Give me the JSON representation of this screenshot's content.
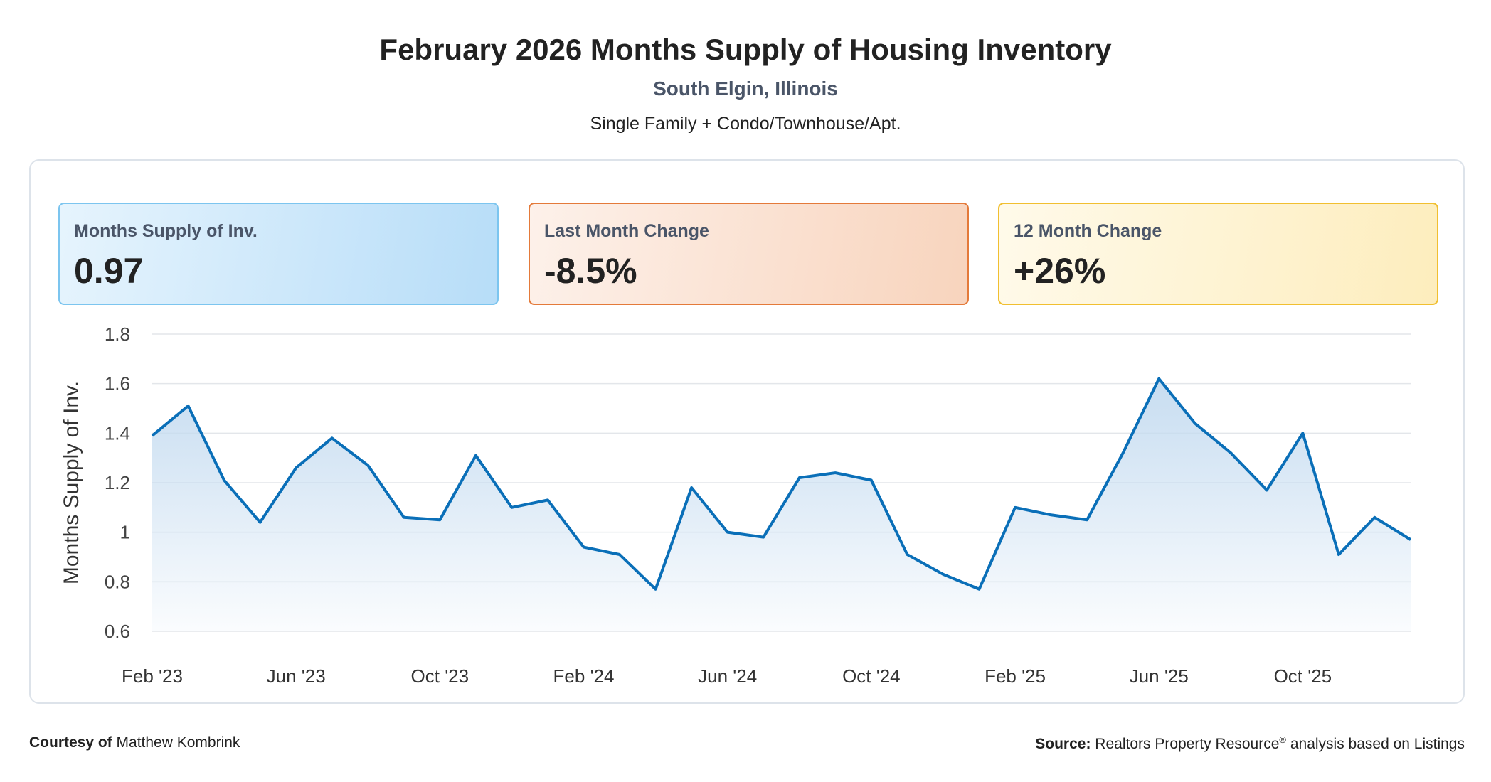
{
  "header": {
    "title": "February 2026 Months Supply of Housing Inventory",
    "location": "South Elgin, Illinois",
    "property_types": "Single Family + Condo/Townhouse/Apt."
  },
  "cards": [
    {
      "label": "Months Supply of Inv.",
      "value": "0.97",
      "accent": "#7cc5ef"
    },
    {
      "label": "Last Month Change",
      "value": "-8.5%",
      "accent": "#e47a3a"
    },
    {
      "label": "12 Month Change",
      "value": "+26%",
      "accent": "#f1bf30"
    }
  ],
  "chart_data": {
    "type": "area",
    "ylabel": "Months Supply of Inv.",
    "ylim": [
      0.6,
      1.8
    ],
    "yticks": [
      0.6,
      0.8,
      1,
      1.2,
      1.4,
      1.6,
      1.8
    ],
    "ytick_labels": [
      "0.6",
      "0.8",
      "1",
      "1.2",
      "1.4",
      "1.6",
      "1.8"
    ],
    "xtick_labels": [
      {
        "index": 0,
        "label": "Feb '23"
      },
      {
        "index": 4,
        "label": "Jun '23"
      },
      {
        "index": 8,
        "label": "Oct '23"
      },
      {
        "index": 12,
        "label": "Feb '24"
      },
      {
        "index": 16,
        "label": "Jun '24"
      },
      {
        "index": 20,
        "label": "Oct '24"
      },
      {
        "index": 24,
        "label": "Feb '25"
      },
      {
        "index": 28,
        "label": "Jun '25"
      },
      {
        "index": 32,
        "label": "Oct '25"
      }
    ],
    "x": [
      "Feb '23",
      "Mar '23",
      "Apr '23",
      "May '23",
      "Jun '23",
      "Jul '23",
      "Aug '23",
      "Sep '23",
      "Oct '23",
      "Nov '23",
      "Dec '23",
      "Jan '24",
      "Feb '24",
      "Mar '24",
      "Apr '24",
      "May '24",
      "Jun '24",
      "Jul '24",
      "Aug '24",
      "Sep '24",
      "Oct '24",
      "Nov '24",
      "Dec '24",
      "Jan '25",
      "Feb '25",
      "Mar '25",
      "Apr '25",
      "May '25",
      "Jun '25",
      "Jul '25",
      "Aug '25",
      "Sep '25",
      "Oct '25",
      "Nov '25",
      "Dec '25",
      "Jan '26"
    ],
    "values": [
      1.39,
      1.51,
      1.21,
      1.04,
      1.26,
      1.38,
      1.27,
      1.06,
      1.05,
      1.31,
      1.1,
      1.13,
      0.94,
      0.91,
      0.77,
      1.18,
      1.0,
      0.98,
      1.22,
      1.24,
      1.21,
      0.91,
      0.83,
      0.77,
      1.1,
      1.07,
      1.05,
      1.32,
      1.62,
      1.44,
      1.32,
      1.17,
      1.4,
      0.91,
      1.06,
      0.97
    ],
    "grid": true,
    "line_color": "#0a6fb8",
    "fill_color": "#c4dbf0"
  },
  "footer": {
    "courtesy_label": "Courtesy of",
    "courtesy_name": "Matthew Kombrink",
    "source_label": "Source:",
    "source_text": "Realtors Property Resource",
    "source_reg": "®",
    "source_suffix": " analysis based on Listings"
  }
}
